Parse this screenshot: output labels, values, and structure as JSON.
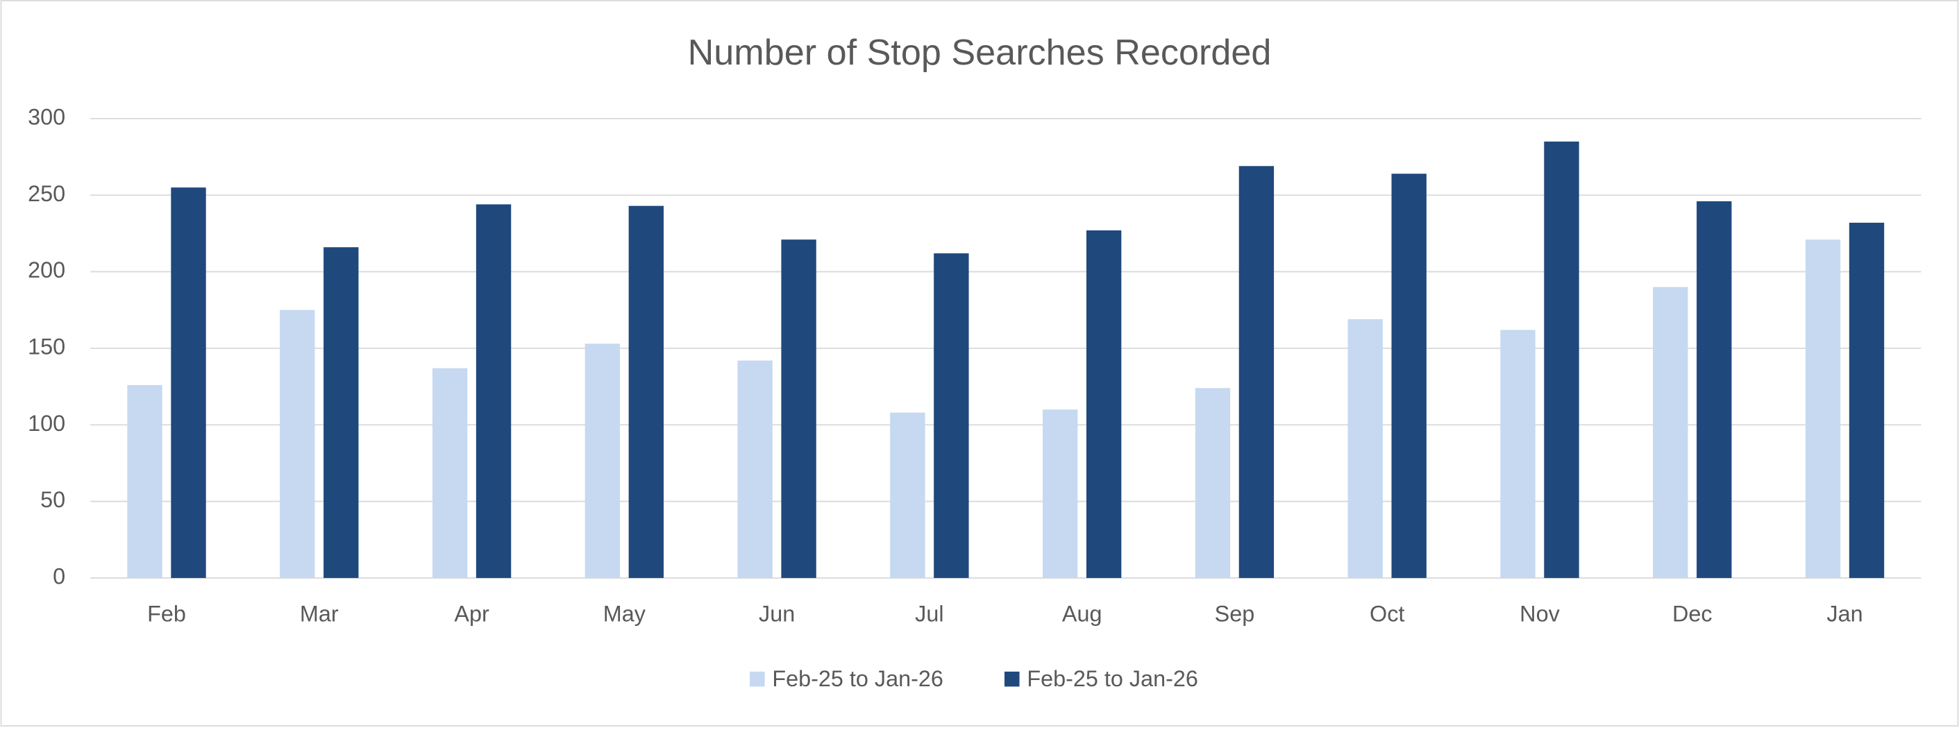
{
  "chart_data": {
    "type": "bar",
    "title": "Number of Stop Searches Recorded",
    "categories": [
      "Feb",
      "Mar",
      "Apr",
      "May",
      "Jun",
      "Jul",
      "Aug",
      "Sep",
      "Oct",
      "Nov",
      "Dec",
      "Jan"
    ],
    "series": [
      {
        "name": "Feb-25 to Jan-26",
        "color": "#c6d9f1",
        "values": [
          126,
          175,
          137,
          153,
          142,
          108,
          110,
          124,
          169,
          162,
          190,
          221
        ]
      },
      {
        "name": "Feb-25 to Jan-26",
        "color": "#1f497d",
        "values": [
          255,
          216,
          244,
          243,
          221,
          212,
          227,
          269,
          264,
          285,
          246,
          232
        ]
      }
    ],
    "ylim": [
      0,
      300
    ],
    "yticks": [
      0,
      50,
      100,
      150,
      200,
      250,
      300
    ],
    "grid": true,
    "legend": "bottom"
  }
}
